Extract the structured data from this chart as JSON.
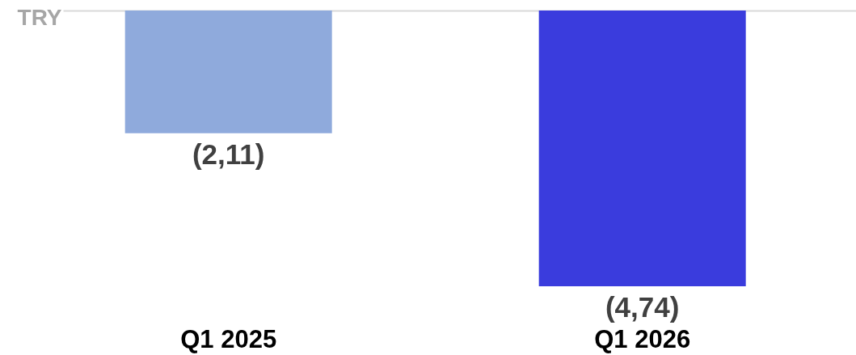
{
  "chart_data": {
    "type": "bar",
    "ylabel": "TRY",
    "categories": [
      "Q1 2025",
      "Q1 2026"
    ],
    "values": [
      -2.11,
      -4.74
    ],
    "colors": [
      "#8faadc",
      "#3a3cdd"
    ],
    "value_labels": [
      "(2,11)",
      "(4,74)"
    ],
    "tick_labels": "x"
  }
}
